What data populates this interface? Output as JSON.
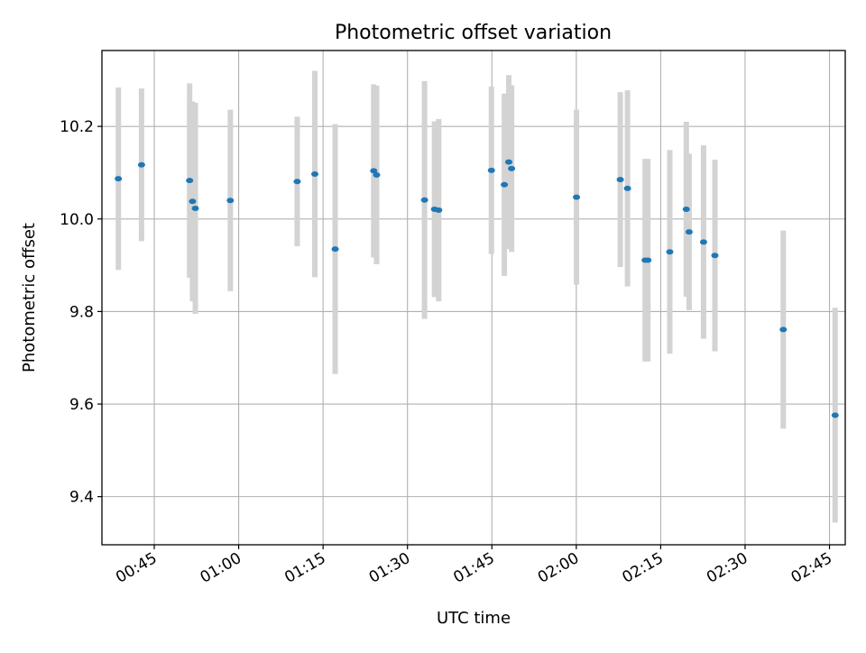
{
  "chart_data": {
    "type": "scatter",
    "title": "Photometric offset variation",
    "xlabel": "UTC time",
    "ylabel": "Photometric offset",
    "x_tick_labels": [
      "00:45",
      "01:00",
      "01:15",
      "01:30",
      "01:45",
      "02:00",
      "02:15",
      "02:30",
      "02:45"
    ],
    "y_tick_labels": [
      "9.4",
      "9.6",
      "9.8",
      "10.0",
      "10.2"
    ],
    "y_ticks": [
      9.4,
      9.6,
      9.8,
      10.0,
      10.2
    ],
    "xlim": [
      "00:35:42",
      "02:47:48"
    ],
    "ylim": [
      9.296,
      10.364
    ],
    "grid": true,
    "point_color": "#1f77b4",
    "errorbar_color": "#d3d3d3",
    "points": [
      {
        "x": "00:38:37",
        "y": 10.087,
        "err": 0.197
      },
      {
        "x": "00:42:44",
        "y": 10.117,
        "err": 0.165
      },
      {
        "x": "00:51:17",
        "y": 10.083,
        "err": 0.21
      },
      {
        "x": "00:51:48",
        "y": 10.038,
        "err": 0.216
      },
      {
        "x": "00:52:18",
        "y": 10.023,
        "err": 0.228
      },
      {
        "x": "00:58:31",
        "y": 10.04,
        "err": 0.196
      },
      {
        "x": "01:10:24",
        "y": 10.081,
        "err": 0.14
      },
      {
        "x": "01:13:32",
        "y": 10.097,
        "err": 0.223
      },
      {
        "x": "01:17:09",
        "y": 9.935,
        "err": 0.27
      },
      {
        "x": "01:24:00",
        "y": 10.104,
        "err": 0.187
      },
      {
        "x": "01:24:31",
        "y": 10.095,
        "err": 0.193
      },
      {
        "x": "01:33:02",
        "y": 10.041,
        "err": 0.257
      },
      {
        "x": "01:34:48",
        "y": 10.021,
        "err": 0.19
      },
      {
        "x": "01:35:33",
        "y": 10.019,
        "err": 0.197
      },
      {
        "x": "01:44:55",
        "y": 10.105,
        "err": 0.181
      },
      {
        "x": "01:47:13",
        "y": 10.074,
        "err": 0.197
      },
      {
        "x": "01:48:00",
        "y": 10.123,
        "err": 0.188
      },
      {
        "x": "01:48:30",
        "y": 10.109,
        "err": 0.18
      },
      {
        "x": "02:00:02",
        "y": 10.047,
        "err": 0.189
      },
      {
        "x": "02:07:49",
        "y": 10.085,
        "err": 0.189
      },
      {
        "x": "02:09:06",
        "y": 10.066,
        "err": 0.212
      },
      {
        "x": "02:12:14",
        "y": 9.911,
        "err": 0.219
      },
      {
        "x": "02:12:44",
        "y": 9.911,
        "err": 0.219
      },
      {
        "x": "02:16:37",
        "y": 9.929,
        "err": 0.22
      },
      {
        "x": "02:19:33",
        "y": 10.021,
        "err": 0.189
      },
      {
        "x": "02:20:03",
        "y": 9.972,
        "err": 0.169
      },
      {
        "x": "02:22:37",
        "y": 9.95,
        "err": 0.209
      },
      {
        "x": "02:24:38",
        "y": 9.921,
        "err": 0.207
      },
      {
        "x": "02:36:47",
        "y": 9.761,
        "err": 0.214
      },
      {
        "x": "02:46:00",
        "y": 9.576,
        "err": 0.232
      }
    ]
  }
}
